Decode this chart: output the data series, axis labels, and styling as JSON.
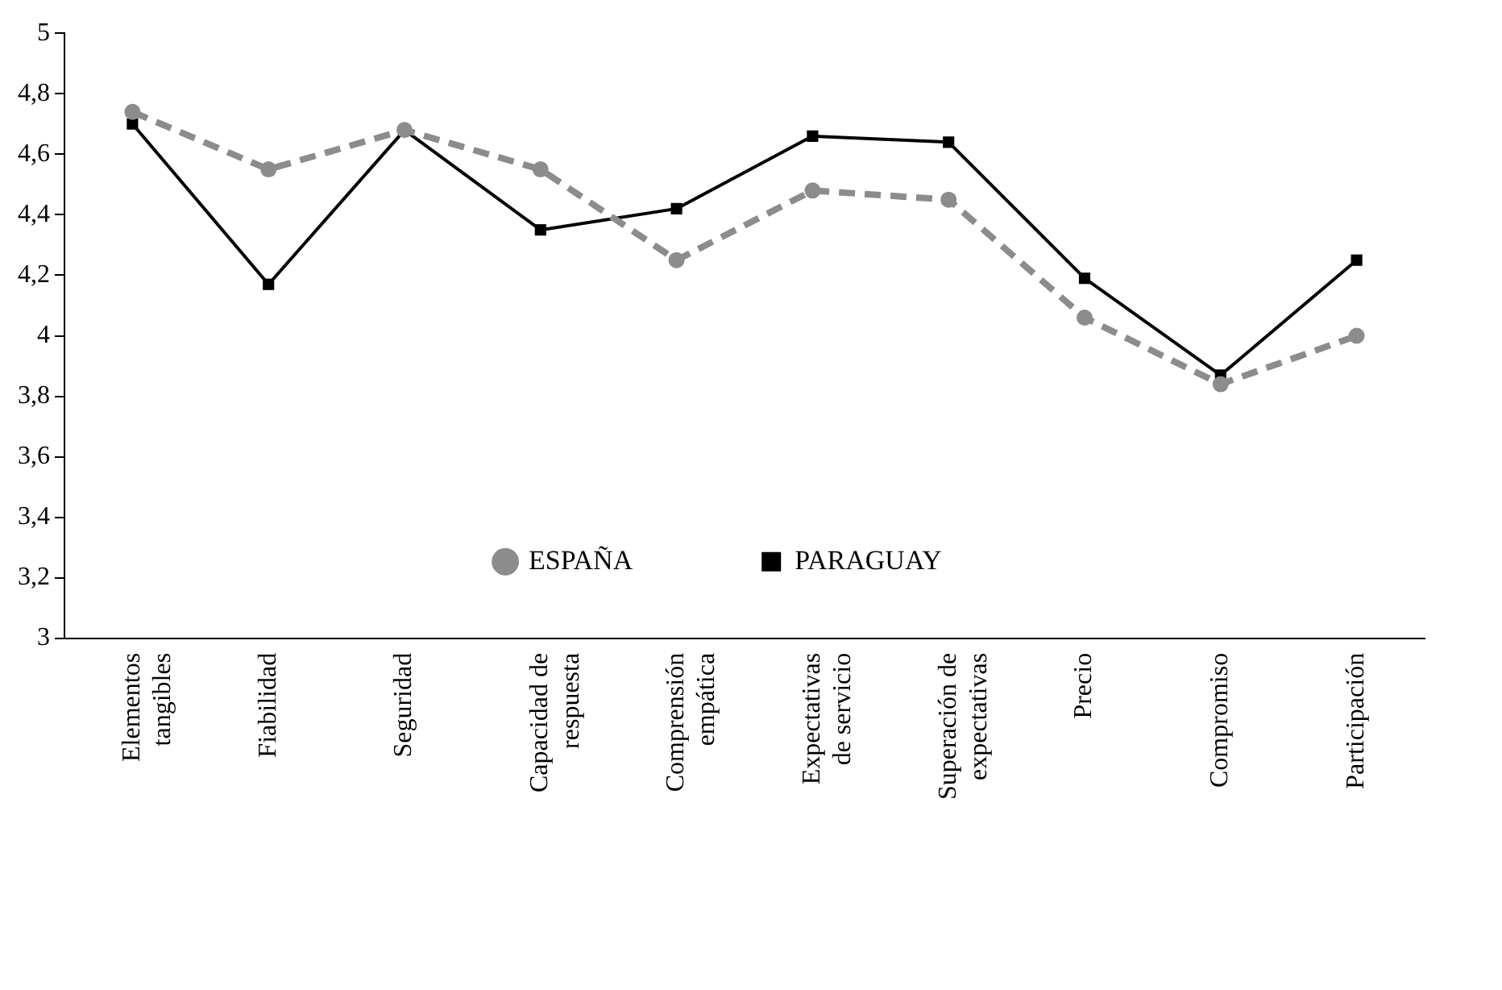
{
  "chart_data": {
    "type": "line",
    "categories": [
      "Elementos tangibles",
      "Fiabilidad",
      "Seguridad",
      "Capacidad de respuesta",
      "Comprensión empática",
      "Expectativas de servicio",
      "Superación de expectativas",
      "Precio",
      "Compromiso",
      "Participación"
    ],
    "series": [
      {
        "name": "ESPAÑA",
        "color": "#8c8c8c",
        "marker": "circle",
        "line_style": "dashed",
        "values": [
          4.74,
          4.55,
          4.68,
          4.55,
          4.25,
          4.48,
          4.45,
          4.06,
          3.84,
          4.0
        ]
      },
      {
        "name": "PARAGUAY",
        "color": "#000000",
        "marker": "square",
        "line_style": "solid",
        "values": [
          4.7,
          4.17,
          4.68,
          4.35,
          4.42,
          4.66,
          4.64,
          4.19,
          3.87,
          4.25
        ]
      }
    ],
    "ylim": [
      3,
      5
    ],
    "yticks": [
      3,
      {
        "value": 3.2,
        "label": "3,2"
      },
      {
        "value": 3.4,
        "label": "3,4"
      },
      {
        "value": 3.6,
        "label": "3,6"
      },
      {
        "value": 3.8,
        "label": "3,8"
      },
      4,
      {
        "value": 4.2,
        "label": "4,2"
      },
      {
        "value": 4.4,
        "label": "4,4"
      },
      {
        "value": 4.6,
        "label": "4,6"
      },
      {
        "value": 4.8,
        "label": "4,8"
      },
      5
    ],
    "grid": false,
    "legend": "bottom"
  }
}
